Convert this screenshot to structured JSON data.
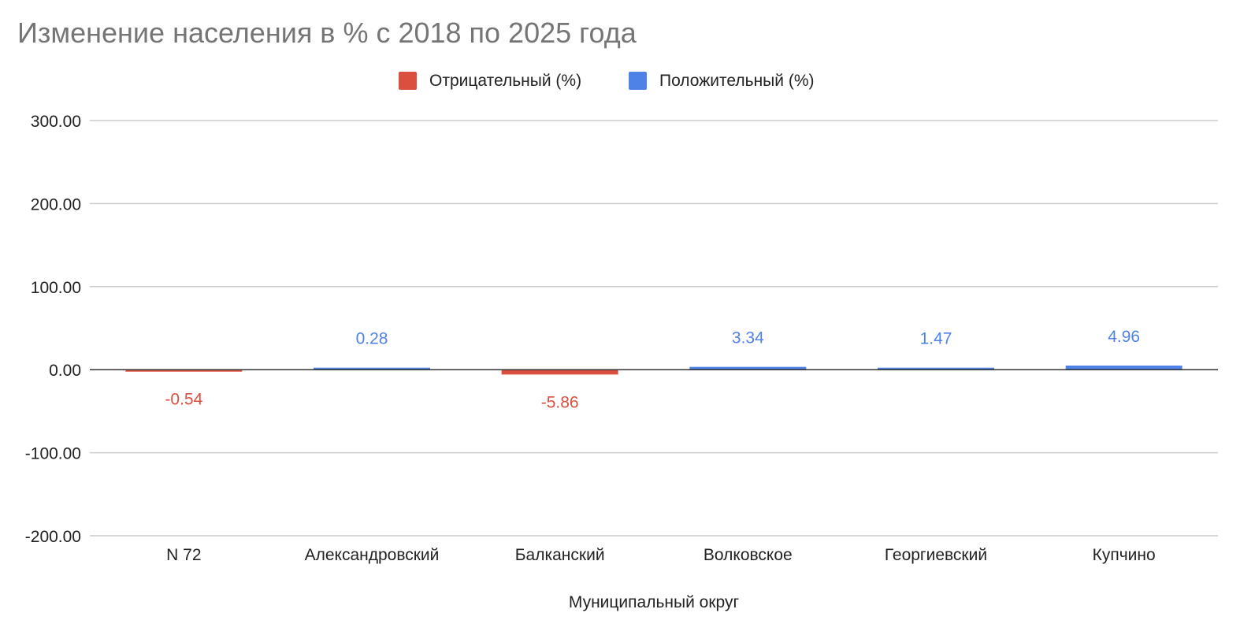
{
  "chart_data": {
    "type": "bar",
    "title": "Изменение населения в % с 2018 по 2025 года",
    "xlabel": "Муниципальный округ",
    "ylabel": "",
    "categories": [
      "N 72",
      "Александровский",
      "Балканский",
      "Волковское",
      "Георгиевский",
      "Купчино"
    ],
    "series": [
      {
        "name": "Отрицательный (%)",
        "color": "#db4f3f",
        "values": [
          -0.54,
          null,
          -5.86,
          null,
          null,
          null
        ]
      },
      {
        "name": "Положительный (%)",
        "color": "#4f82e6",
        "values": [
          null,
          0.28,
          null,
          3.34,
          1.47,
          4.96
        ]
      }
    ],
    "data_labels": [
      "-0.54",
      "0.28",
      "-5.86",
      "3.34",
      "1.47",
      "4.96"
    ],
    "ylim": [
      -200,
      300
    ],
    "yticks": [
      300,
      200,
      100,
      0,
      -100,
      -200
    ],
    "ytick_labels": [
      "300.00",
      "200.00",
      "100.00",
      "0.00",
      "-100.00",
      "-200.00"
    ],
    "grid": true,
    "legend_position": "top-center",
    "stacked": true
  }
}
